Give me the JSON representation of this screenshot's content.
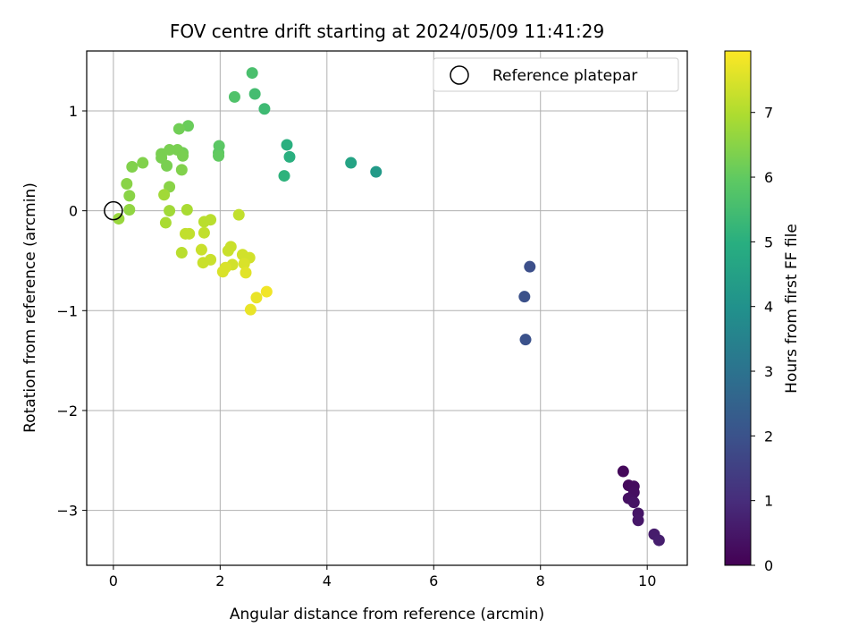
{
  "chart_data": {
    "type": "scatter",
    "title": "FOV centre drift starting at 2024/05/09 11:41:29",
    "xlabel": "Angular distance from reference (arcmin)",
    "ylabel": "Rotation from reference (arcmin)",
    "xlim": [
      -0.5,
      10.75
    ],
    "ylim": [
      -3.55,
      1.6
    ],
    "xticks": [
      0,
      2,
      4,
      6,
      8,
      10
    ],
    "xtick_labels": [
      "0",
      "2",
      "4",
      "6",
      "8",
      "10"
    ],
    "yticks": [
      -3,
      -2,
      -1,
      0,
      1
    ],
    "ytick_labels": [
      "−3",
      "−2",
      "−1",
      "0",
      "1"
    ],
    "grid": true,
    "legend": {
      "position": "top-right",
      "label": "Reference platepar"
    },
    "reference_point": {
      "x": 0,
      "y": 0
    },
    "colorbar": {
      "label": "Hours from first FF file",
      "colormap": "viridis",
      "range": [
        0,
        7.95
      ],
      "ticks": [
        0,
        1,
        2,
        3,
        4,
        5,
        6,
        7
      ],
      "tick_labels": [
        "0",
        "1",
        "2",
        "3",
        "4",
        "5",
        "6",
        "7"
      ]
    },
    "points": [
      {
        "x": 9.55,
        "y": -2.61,
        "c": 0.15
      },
      {
        "x": 9.65,
        "y": -2.75,
        "c": 0.2
      },
      {
        "x": 9.75,
        "y": -2.76,
        "c": 0.25
      },
      {
        "x": 9.75,
        "y": -2.82,
        "c": 0.3
      },
      {
        "x": 9.65,
        "y": -2.88,
        "c": 0.35
      },
      {
        "x": 9.75,
        "y": -2.92,
        "c": 0.4
      },
      {
        "x": 9.83,
        "y": -3.03,
        "c": 0.45
      },
      {
        "x": 9.83,
        "y": -3.1,
        "c": 0.5
      },
      {
        "x": 10.13,
        "y": -3.24,
        "c": 0.6
      },
      {
        "x": 10.22,
        "y": -3.3,
        "c": 0.65
      },
      {
        "x": 7.8,
        "y": -0.56,
        "c": 1.9
      },
      {
        "x": 7.7,
        "y": -0.86,
        "c": 1.95
      },
      {
        "x": 7.72,
        "y": -1.29,
        "c": 2.0
      },
      {
        "x": 4.92,
        "y": 0.39,
        "c": 4.3
      },
      {
        "x": 4.45,
        "y": 0.48,
        "c": 4.6
      },
      {
        "x": 3.3,
        "y": 0.54,
        "c": 5.0
      },
      {
        "x": 3.25,
        "y": 0.66,
        "c": 5.0
      },
      {
        "x": 3.2,
        "y": 0.35,
        "c": 5.1
      },
      {
        "x": 2.83,
        "y": 1.02,
        "c": 5.4
      },
      {
        "x": 2.65,
        "y": 1.17,
        "c": 5.5
      },
      {
        "x": 2.6,
        "y": 1.38,
        "c": 5.6
      },
      {
        "x": 2.27,
        "y": 1.14,
        "c": 5.7
      },
      {
        "x": 1.98,
        "y": 0.65,
        "c": 5.9
      },
      {
        "x": 1.97,
        "y": 0.58,
        "c": 5.9
      },
      {
        "x": 1.97,
        "y": 0.55,
        "c": 6.0
      },
      {
        "x": 1.4,
        "y": 0.85,
        "c": 6.1
      },
      {
        "x": 1.23,
        "y": 0.82,
        "c": 6.2
      },
      {
        "x": 1.3,
        "y": 0.58,
        "c": 6.2
      },
      {
        "x": 1.2,
        "y": 0.61,
        "c": 6.3
      },
      {
        "x": 1.05,
        "y": 0.61,
        "c": 6.3
      },
      {
        "x": 0.9,
        "y": 0.57,
        "c": 6.3
      },
      {
        "x": 0.9,
        "y": 0.53,
        "c": 6.3
      },
      {
        "x": 1.3,
        "y": 0.55,
        "c": 6.3
      },
      {
        "x": 1.0,
        "y": 0.45,
        "c": 6.3
      },
      {
        "x": 1.28,
        "y": 0.41,
        "c": 6.4
      },
      {
        "x": 0.55,
        "y": 0.48,
        "c": 6.4
      },
      {
        "x": 0.35,
        "y": 0.44,
        "c": 6.4
      },
      {
        "x": 0.25,
        "y": 0.27,
        "c": 6.5
      },
      {
        "x": 1.05,
        "y": 0.24,
        "c": 6.5
      },
      {
        "x": 0.3,
        "y": 0.15,
        "c": 6.5
      },
      {
        "x": 0.95,
        "y": 0.16,
        "c": 6.8
      },
      {
        "x": 0.3,
        "y": 0.01,
        "c": 6.6
      },
      {
        "x": 0.1,
        "y": -0.08,
        "c": 6.7
      },
      {
        "x": 1.05,
        "y": 0.0,
        "c": 6.8
      },
      {
        "x": 1.38,
        "y": 0.01,
        "c": 6.9
      },
      {
        "x": 0.98,
        "y": -0.12,
        "c": 6.9
      },
      {
        "x": 1.7,
        "y": -0.11,
        "c": 7.1
      },
      {
        "x": 1.82,
        "y": -0.09,
        "c": 7.1
      },
      {
        "x": 2.35,
        "y": -0.04,
        "c": 7.2
      },
      {
        "x": 1.7,
        "y": -0.22,
        "c": 7.2
      },
      {
        "x": 1.35,
        "y": -0.23,
        "c": 7.2
      },
      {
        "x": 1.42,
        "y": -0.23,
        "c": 7.2
      },
      {
        "x": 2.2,
        "y": -0.36,
        "c": 7.3
      },
      {
        "x": 2.15,
        "y": -0.4,
        "c": 7.3
      },
      {
        "x": 1.65,
        "y": -0.39,
        "c": 7.3
      },
      {
        "x": 1.28,
        "y": -0.42,
        "c": 7.1
      },
      {
        "x": 2.42,
        "y": -0.44,
        "c": 7.4
      },
      {
        "x": 2.55,
        "y": -0.47,
        "c": 7.4
      },
      {
        "x": 1.82,
        "y": -0.49,
        "c": 7.3
      },
      {
        "x": 1.68,
        "y": -0.52,
        "c": 7.3
      },
      {
        "x": 2.23,
        "y": -0.54,
        "c": 7.4
      },
      {
        "x": 2.45,
        "y": -0.53,
        "c": 7.5
      },
      {
        "x": 2.1,
        "y": -0.57,
        "c": 7.5
      },
      {
        "x": 2.05,
        "y": -0.61,
        "c": 7.5
      },
      {
        "x": 2.48,
        "y": -0.62,
        "c": 7.6
      },
      {
        "x": 2.68,
        "y": -0.87,
        "c": 7.7
      },
      {
        "x": 2.87,
        "y": -0.81,
        "c": 7.8
      },
      {
        "x": 2.57,
        "y": -0.99,
        "c": 7.7
      }
    ]
  }
}
